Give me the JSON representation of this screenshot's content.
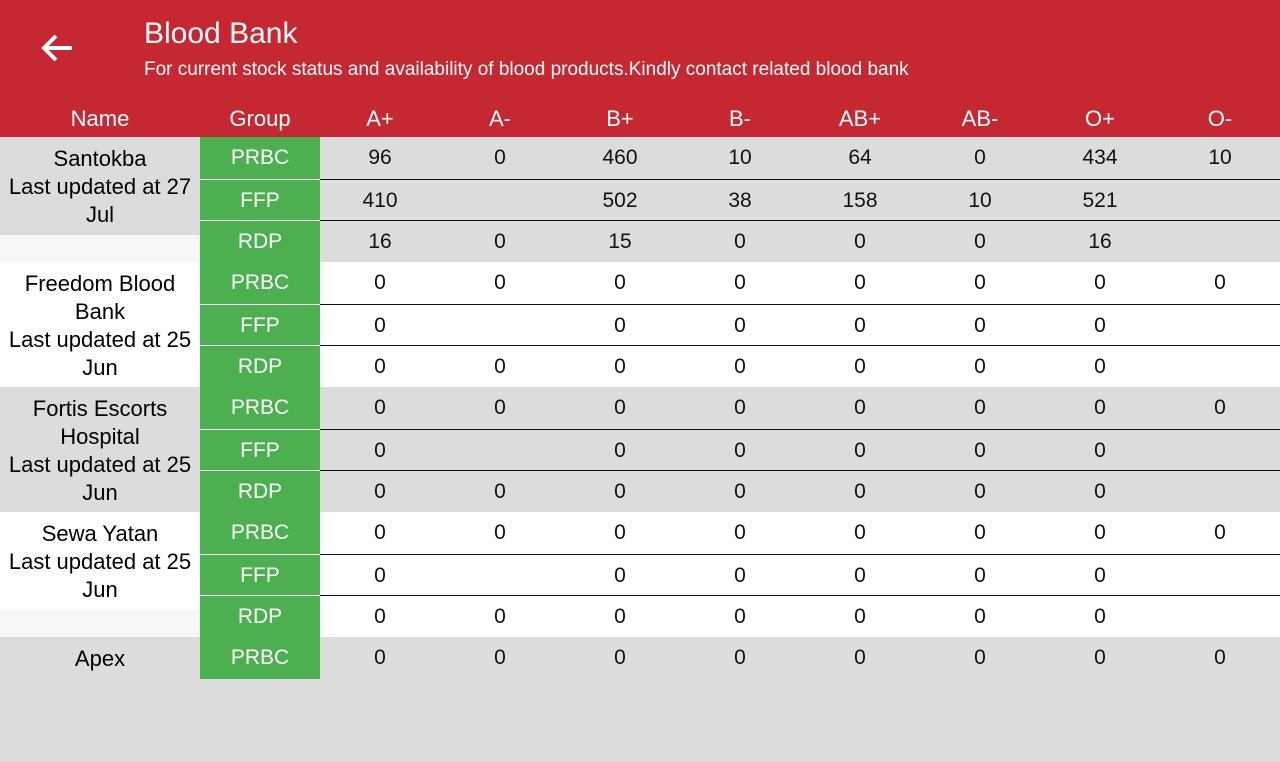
{
  "header": {
    "title": "Blood Bank",
    "subtitle": "For current stock status and availability of blood products.Kindly contact related blood bank",
    "back_icon": "arrow-left-icon"
  },
  "colors": {
    "header": "#c62832",
    "group": "#4caf50",
    "alt_row": "#dcdcdc"
  },
  "columns": [
    "Name",
    "Group",
    "A+",
    "A-",
    "B+",
    "B-",
    "AB+",
    "AB-",
    "O+",
    "O-"
  ],
  "banks": [
    {
      "name": "Santokba",
      "updated": "Last updated at 27 Jul",
      "rows": [
        {
          "group": "PRBC",
          "values": [
            "96",
            "0",
            "460",
            "10",
            "64",
            "0",
            "434",
            "10"
          ]
        },
        {
          "group": "FFP",
          "values": [
            "410",
            "",
            "502",
            "38",
            "158",
            "10",
            "521",
            ""
          ]
        },
        {
          "group": "RDP",
          "values": [
            "16",
            "0",
            "15",
            "0",
            "0",
            "0",
            "16",
            ""
          ]
        }
      ]
    },
    {
      "name": "Freedom Blood Bank",
      "updated": "Last updated at 25 Jun",
      "rows": [
        {
          "group": "PRBC",
          "values": [
            "0",
            "0",
            "0",
            "0",
            "0",
            "0",
            "0",
            "0"
          ]
        },
        {
          "group": "FFP",
          "values": [
            "0",
            "",
            "0",
            "0",
            "0",
            "0",
            "0",
            ""
          ]
        },
        {
          "group": "RDP",
          "values": [
            "0",
            "0",
            "0",
            "0",
            "0",
            "0",
            "0",
            ""
          ]
        }
      ]
    },
    {
      "name": "Fortis Escorts Hospital",
      "updated": "Last updated at 25 Jun",
      "rows": [
        {
          "group": "PRBC",
          "values": [
            "0",
            "0",
            "0",
            "0",
            "0",
            "0",
            "0",
            "0"
          ]
        },
        {
          "group": "FFP",
          "values": [
            "0",
            "",
            "0",
            "0",
            "0",
            "0",
            "0",
            ""
          ]
        },
        {
          "group": "RDP",
          "values": [
            "0",
            "0",
            "0",
            "0",
            "0",
            "0",
            "0",
            ""
          ]
        }
      ]
    },
    {
      "name": "Sewa Yatan",
      "updated": "Last updated at 25 Jun",
      "rows": [
        {
          "group": "PRBC",
          "values": [
            "0",
            "0",
            "0",
            "0",
            "0",
            "0",
            "0",
            "0"
          ]
        },
        {
          "group": "FFP",
          "values": [
            "0",
            "",
            "0",
            "0",
            "0",
            "0",
            "0",
            ""
          ]
        },
        {
          "group": "RDP",
          "values": [
            "0",
            "0",
            "0",
            "0",
            "0",
            "0",
            "0",
            ""
          ]
        }
      ]
    },
    {
      "name": "Apex",
      "updated": "",
      "rows": [
        {
          "group": "PRBC",
          "values": [
            "0",
            "0",
            "0",
            "0",
            "0",
            "0",
            "0",
            "0"
          ]
        }
      ]
    }
  ]
}
